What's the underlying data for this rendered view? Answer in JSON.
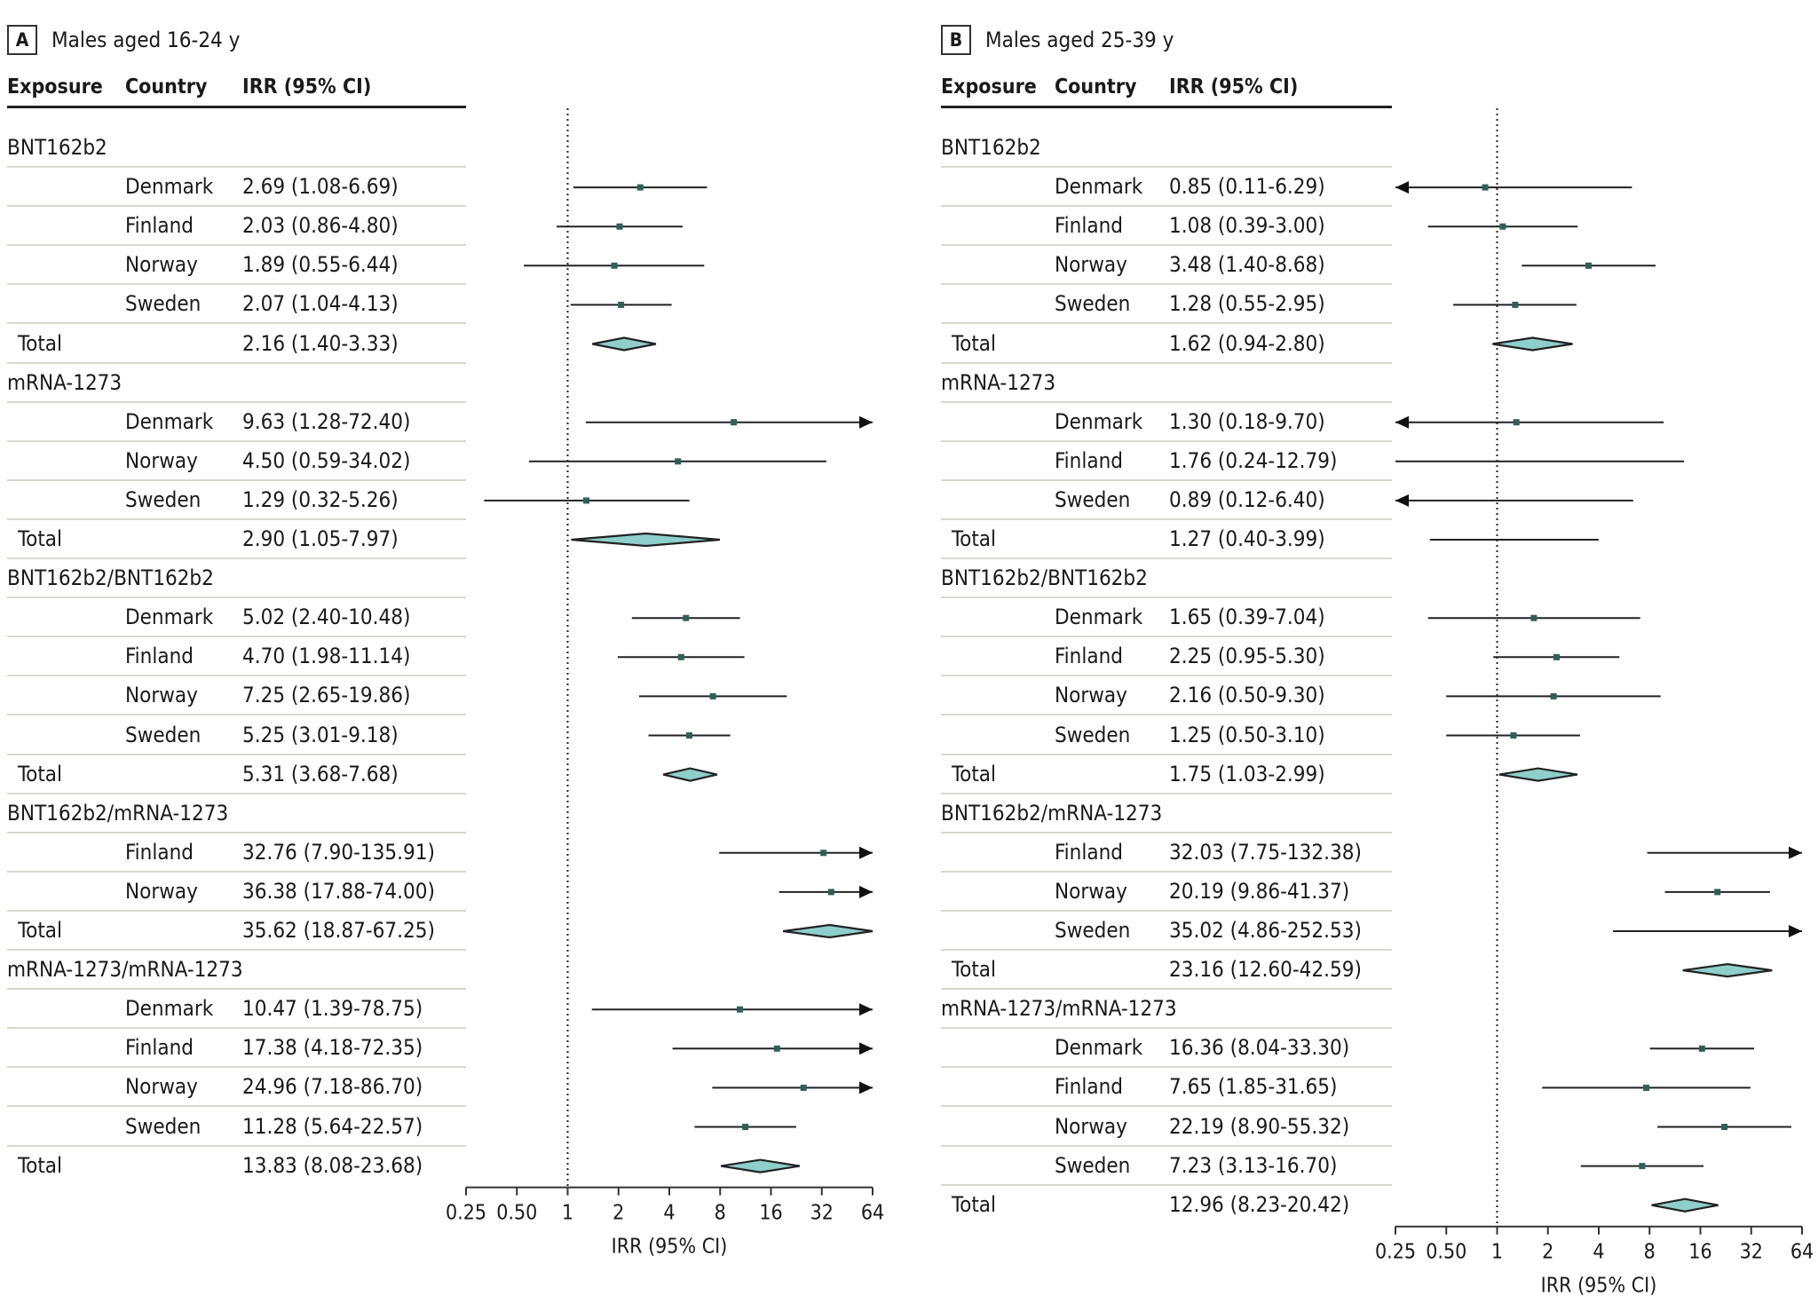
{
  "figure": {
    "panels": [
      {
        "letter": "A",
        "title": "Males aged 16-24 y",
        "headers": {
          "exposure": "Exposure",
          "country": "Country",
          "irr": "IRR (95% CI)"
        },
        "axis_label": "IRR (95% CI)",
        "ticks": [
          "0.25",
          "0.50",
          "1",
          "2",
          "4",
          "8",
          "16",
          "32",
          "64"
        ]
      },
      {
        "letter": "B",
        "title": "Males aged 25-39 y",
        "headers": {
          "exposure": "Exposure",
          "country": "Country",
          "irr": "IRR (95% CI)"
        },
        "axis_label": "IRR (95% CI)",
        "ticks": [
          "0.25",
          "0.50",
          "1",
          "2",
          "4",
          "8",
          "16",
          "32",
          "64"
        ]
      }
    ]
  },
  "chart_data": [
    {
      "type": "forest",
      "title": "Males aged 16-24 y",
      "panel": "A",
      "xlabel": "IRR (95% CI)",
      "xscale": "log2",
      "xlim": [
        0.25,
        64
      ],
      "xticks": [
        0.25,
        0.5,
        1,
        2,
        4,
        8,
        16,
        32,
        64
      ],
      "reference_line": 1,
      "groups": [
        {
          "exposure": "BNT162b2",
          "rows": [
            {
              "country": "Denmark",
              "irr": 2.69,
              "lo": 1.08,
              "hi": 6.69,
              "label": "2.69 (1.08-6.69)"
            },
            {
              "country": "Finland",
              "irr": 2.03,
              "lo": 0.86,
              "hi": 4.8,
              "label": "2.03 (0.86-4.80)"
            },
            {
              "country": "Norway",
              "irr": 1.89,
              "lo": 0.55,
              "hi": 6.44,
              "label": "1.89 (0.55-6.44)"
            },
            {
              "country": "Sweden",
              "irr": 2.07,
              "lo": 1.04,
              "hi": 4.13,
              "label": "2.07 (1.04-4.13)"
            }
          ],
          "total": {
            "irr": 2.16,
            "lo": 1.4,
            "hi": 3.33,
            "label": "2.16 (1.40-3.33)"
          }
        },
        {
          "exposure": "mRNA-1273",
          "rows": [
            {
              "country": "Denmark",
              "irr": 9.63,
              "lo": 1.28,
              "hi": 72.4,
              "label": "9.63 (1.28-72.40)"
            },
            {
              "country": "Norway",
              "irr": 4.5,
              "lo": 0.59,
              "hi": 34.02,
              "label": "4.50 (0.59-34.02)"
            },
            {
              "country": "Sweden",
              "irr": 1.29,
              "lo": 0.32,
              "hi": 5.26,
              "label": "1.29 (0.32-5.26)"
            }
          ],
          "total": {
            "irr": 2.9,
            "lo": 1.05,
            "hi": 7.97,
            "label": "2.90 (1.05-7.97)"
          }
        },
        {
          "exposure": "BNT162b2/BNT162b2",
          "rows": [
            {
              "country": "Denmark",
              "irr": 5.02,
              "lo": 2.4,
              "hi": 10.48,
              "label": "5.02 (2.40-10.48)"
            },
            {
              "country": "Finland",
              "irr": 4.7,
              "lo": 1.98,
              "hi": 11.14,
              "label": "4.70 (1.98-11.14)"
            },
            {
              "country": "Norway",
              "irr": 7.25,
              "lo": 2.65,
              "hi": 19.86,
              "label": "7.25 (2.65-19.86)"
            },
            {
              "country": "Sweden",
              "irr": 5.25,
              "lo": 3.01,
              "hi": 9.18,
              "label": "5.25 (3.01-9.18)"
            }
          ],
          "total": {
            "irr": 5.31,
            "lo": 3.68,
            "hi": 7.68,
            "label": "5.31 (3.68-7.68)"
          }
        },
        {
          "exposure": "BNT162b2/mRNA-1273",
          "rows": [
            {
              "country": "Finland",
              "irr": 32.76,
              "lo": 7.9,
              "hi": 135.91,
              "label": "32.76 (7.90-135.91)"
            },
            {
              "country": "Norway",
              "irr": 36.38,
              "lo": 17.88,
              "hi": 74.0,
              "label": "36.38 (17.88-74.00)"
            }
          ],
          "total": {
            "irr": 35.62,
            "lo": 18.87,
            "hi": 67.25,
            "label": "35.62 (18.87-67.25)"
          }
        },
        {
          "exposure": "mRNA-1273/mRNA-1273",
          "rows": [
            {
              "country": "Denmark",
              "irr": 10.47,
              "lo": 1.39,
              "hi": 78.75,
              "label": "10.47 (1.39-78.75)"
            },
            {
              "country": "Finland",
              "irr": 17.38,
              "lo": 4.18,
              "hi": 72.35,
              "label": "17.38 (4.18-72.35)"
            },
            {
              "country": "Norway",
              "irr": 24.96,
              "lo": 7.18,
              "hi": 86.7,
              "label": "24.96 (7.18-86.70)"
            },
            {
              "country": "Sweden",
              "irr": 11.28,
              "lo": 5.64,
              "hi": 22.57,
              "label": "11.28 (5.64-22.57)"
            }
          ],
          "total": {
            "irr": 13.83,
            "lo": 8.08,
            "hi": 23.68,
            "label": "13.83 (8.08-23.68)"
          }
        }
      ]
    },
    {
      "type": "forest",
      "title": "Males aged 25-39 y",
      "panel": "B",
      "xlabel": "IRR (95% CI)",
      "xscale": "log2",
      "xlim": [
        0.25,
        64
      ],
      "xticks": [
        0.25,
        0.5,
        1,
        2,
        4,
        8,
        16,
        32,
        64
      ],
      "reference_line": 1,
      "groups": [
        {
          "exposure": "BNT162b2",
          "rows": [
            {
              "country": "Denmark",
              "irr": 0.85,
              "lo": 0.11,
              "hi": 6.29,
              "label": "0.85 (0.11-6.29)"
            },
            {
              "country": "Finland",
              "irr": 1.08,
              "lo": 0.39,
              "hi": 3.0,
              "label": "1.08 (0.39-3.00)"
            },
            {
              "country": "Norway",
              "irr": 3.48,
              "lo": 1.4,
              "hi": 8.68,
              "label": "3.48 (1.40-8.68)"
            },
            {
              "country": "Sweden",
              "irr": 1.28,
              "lo": 0.55,
              "hi": 2.95,
              "label": "1.28 (0.55-2.95)"
            }
          ],
          "total": {
            "irr": 1.62,
            "lo": 0.94,
            "hi": 2.8,
            "label": "1.62 (0.94-2.80)"
          }
        },
        {
          "exposure": "mRNA-1273",
          "rows": [
            {
              "country": "Denmark",
              "irr": 1.3,
              "lo": 0.18,
              "hi": 9.7,
              "label": "1.30 (0.18-9.70)"
            },
            {
              "country": "Finland",
              "irr": 1.76,
              "lo": 0.24,
              "hi": 12.79,
              "label": "1.76 (0.24-12.79)",
              "hide_marker": true,
              "no_arrow": true
            },
            {
              "country": "Sweden",
              "irr": 0.89,
              "lo": 0.12,
              "hi": 6.4,
              "label": "0.89 (0.12-6.40)",
              "hide_marker": true
            }
          ],
          "total": {
            "irr": 1.27,
            "lo": 0.4,
            "hi": 3.99,
            "label": "1.27 (0.40-3.99)",
            "as_line": true
          }
        },
        {
          "exposure": "BNT162b2/BNT162b2",
          "rows": [
            {
              "country": "Denmark",
              "irr": 1.65,
              "lo": 0.39,
              "hi": 7.04,
              "label": "1.65 (0.39-7.04)"
            },
            {
              "country": "Finland",
              "irr": 2.25,
              "lo": 0.95,
              "hi": 5.3,
              "label": "2.25 (0.95-5.30)"
            },
            {
              "country": "Norway",
              "irr": 2.16,
              "lo": 0.5,
              "hi": 9.3,
              "label": "2.16 (0.50-9.30)"
            },
            {
              "country": "Sweden",
              "irr": 1.25,
              "lo": 0.5,
              "hi": 3.1,
              "label": "1.25 (0.50-3.10)"
            }
          ],
          "total": {
            "irr": 1.75,
            "lo": 1.03,
            "hi": 2.99,
            "label": "1.75 (1.03-2.99)"
          }
        },
        {
          "exposure": "BNT162b2/mRNA-1273",
          "rows": [
            {
              "country": "Finland",
              "irr": 32.03,
              "lo": 7.75,
              "hi": 132.38,
              "label": "32.03 (7.75-132.38)",
              "hide_marker": true
            },
            {
              "country": "Norway",
              "irr": 20.19,
              "lo": 9.86,
              "hi": 41.37,
              "label": "20.19 (9.86-41.37)"
            },
            {
              "country": "Sweden",
              "irr": 35.02,
              "lo": 4.86,
              "hi": 252.53,
              "label": "35.02 (4.86-252.53)",
              "hide_marker": true
            }
          ],
          "total": {
            "irr": 23.16,
            "lo": 12.6,
            "hi": 42.59,
            "label": "23.16 (12.60-42.59)"
          }
        },
        {
          "exposure": "mRNA-1273/mRNA-1273",
          "rows": [
            {
              "country": "Denmark",
              "irr": 16.36,
              "lo": 8.04,
              "hi": 33.3,
              "label": "16.36 (8.04-33.30)"
            },
            {
              "country": "Finland",
              "irr": 7.65,
              "lo": 1.85,
              "hi": 31.65,
              "label": "7.65 (1.85-31.65)"
            },
            {
              "country": "Norway",
              "irr": 22.19,
              "lo": 8.9,
              "hi": 55.32,
              "label": "22.19 (8.90-55.32)"
            },
            {
              "country": "Sweden",
              "irr": 7.23,
              "lo": 3.13,
              "hi": 16.7,
              "label": "7.23 (3.13-16.70)"
            }
          ],
          "total": {
            "irr": 12.96,
            "lo": 8.23,
            "hi": 20.42,
            "label": "12.96 (8.23-20.42)"
          }
        }
      ]
    }
  ],
  "labels": {
    "total": "Total"
  },
  "colors": {
    "marker": "#2f5f5a",
    "diamond_fill": "#8ecfcb",
    "line": "#222222",
    "separator": "#d8d8cf",
    "reference": "#222222"
  }
}
